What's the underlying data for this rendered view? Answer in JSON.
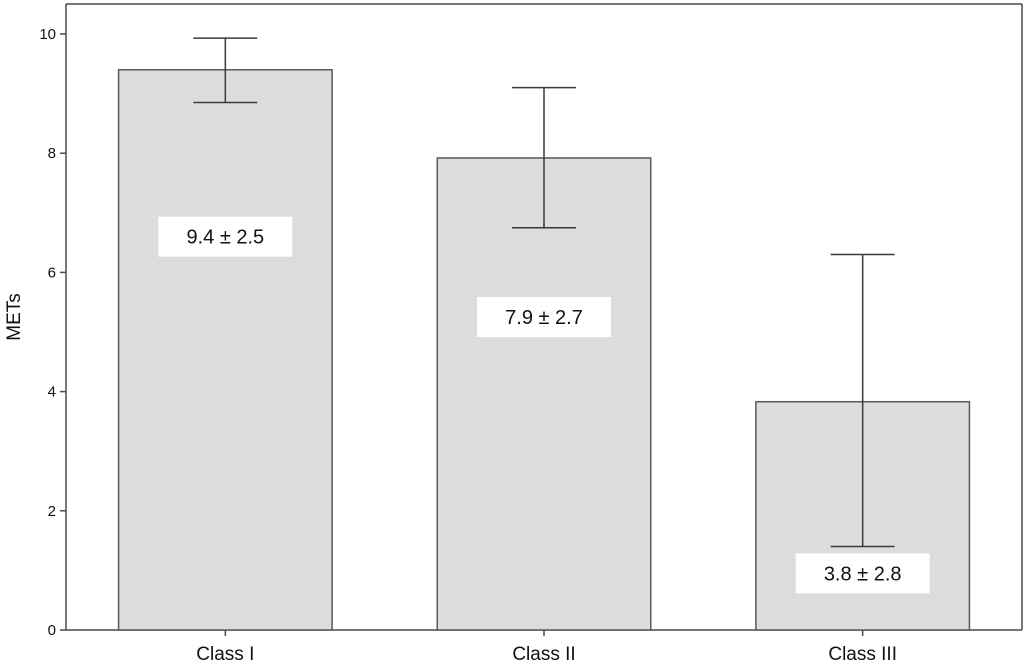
{
  "chart_data": {
    "type": "bar",
    "ylabel": "METs",
    "xlabel": "",
    "ylim": [
      0,
      10
    ],
    "yticks": [
      0,
      2,
      4,
      6,
      8,
      10
    ],
    "grid": false,
    "categories": [
      "Class I",
      "Class II",
      "Class III"
    ],
    "values": [
      9.4,
      7.92,
      3.83
    ],
    "error_low": [
      8.85,
      6.75,
      1.4
    ],
    "error_high": [
      9.93,
      9.1,
      6.3
    ],
    "data_labels": [
      "9.4 ± 2.5",
      "7.9 ± 2.7",
      "3.8 ± 2.8"
    ],
    "data_label_y": [
      6.6,
      5.25,
      0.95
    ],
    "bar_color": "#dcdcdc"
  }
}
